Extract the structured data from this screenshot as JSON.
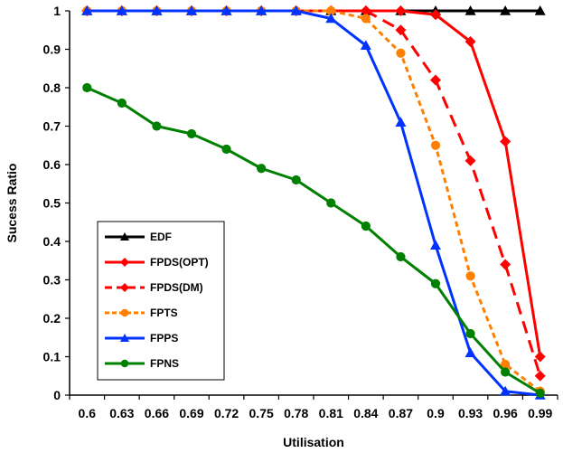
{
  "chart_data": {
    "type": "line",
    "xlabel": "Utilisation",
    "ylabel": "Sucess Ratio",
    "x": [
      0.6,
      0.63,
      0.66,
      0.69,
      0.72,
      0.75,
      0.78,
      0.81,
      0.84,
      0.87,
      0.9,
      0.93,
      0.96,
      0.99
    ],
    "x_tick_labels": [
      "0.6",
      "0.63",
      "0.66",
      "0.69",
      "0.72",
      "0.75",
      "0.78",
      "0.81",
      "0.84",
      "0.87",
      "0.9",
      "0.93",
      "0.96",
      "0.99"
    ],
    "y_ticks": [
      0,
      0.1,
      0.2,
      0.3,
      0.4,
      0.5,
      0.6,
      0.7,
      0.8,
      0.9,
      1
    ],
    "y_tick_labels": [
      "0",
      "0.1",
      "0.2",
      "0.3",
      "0.4",
      "0.5",
      "0.6",
      "0.7",
      "0.8",
      "0.9",
      "1"
    ],
    "ylim": [
      0,
      1
    ],
    "grid": false,
    "legend_position": "bottom-left",
    "series": [
      {
        "name": "EDF",
        "color": "#000000",
        "marker": "triangle",
        "dash": "solid",
        "values": [
          1,
          1,
          1,
          1,
          1,
          1,
          1,
          1,
          1,
          1,
          1,
          1,
          1,
          1
        ]
      },
      {
        "name": "FPDS(OPT)",
        "color": "#ff0000",
        "marker": "diamond",
        "dash": "solid",
        "values": [
          1,
          1,
          1,
          1,
          1,
          1,
          1,
          1,
          1,
          1,
          0.99,
          0.92,
          0.66,
          0.1
        ]
      },
      {
        "name": "FPDS(DM)",
        "color": "#ff0000",
        "marker": "diamond",
        "dash": "longdash",
        "values": [
          1,
          1,
          1,
          1,
          1,
          1,
          1,
          1,
          1,
          0.95,
          0.82,
          0.61,
          0.34,
          0.05
        ]
      },
      {
        "name": "FPTS",
        "color": "#ff8000",
        "marker": "circle",
        "dash": "shortdash",
        "values": [
          1,
          1,
          1,
          1,
          1,
          1,
          1,
          1,
          0.98,
          0.89,
          0.65,
          0.31,
          0.08,
          0.01
        ]
      },
      {
        "name": "FPPS",
        "color": "#0033ff",
        "marker": "triangle",
        "dash": "solid",
        "values": [
          1,
          1,
          1,
          1,
          1,
          1,
          1,
          0.98,
          0.91,
          0.71,
          0.39,
          0.11,
          0.01,
          0
        ]
      },
      {
        "name": "FPNS",
        "color": "#008000",
        "marker": "circle",
        "dash": "solid",
        "values": [
          0.8,
          0.76,
          0.7,
          0.68,
          0.64,
          0.59,
          0.56,
          0.5,
          0.44,
          0.36,
          0.29,
          0.16,
          0.06,
          0.005
        ]
      }
    ]
  }
}
